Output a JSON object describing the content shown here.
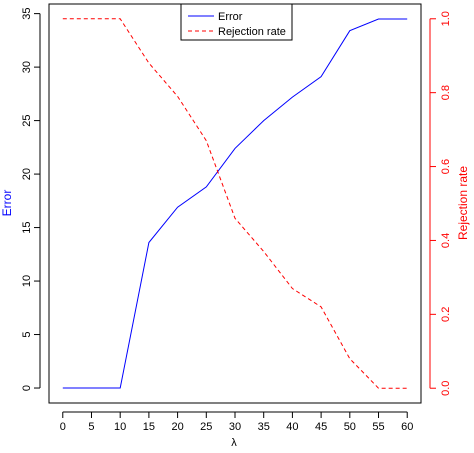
{
  "chart_data": {
    "type": "line",
    "xlabel": "λ",
    "x": [
      0,
      5,
      10,
      15,
      20,
      25,
      30,
      35,
      40,
      45,
      50,
      55,
      60
    ],
    "x_ticks": [
      "0",
      "5",
      "10",
      "15",
      "20",
      "25",
      "30",
      "35",
      "40",
      "45",
      "50",
      "55",
      "60"
    ],
    "xlim": [
      -2.4,
      62.4
    ],
    "left_axis": {
      "label": "Error",
      "color": "#0000ff",
      "ticks": [
        "0",
        "5",
        "10",
        "15",
        "20",
        "25",
        "30",
        "35"
      ],
      "ylim": [
        -1.4,
        35.9
      ]
    },
    "right_axis": {
      "label": "Rejection rate",
      "color": "#ff0000",
      "ticks": [
        "0.0",
        "0.2",
        "0.4",
        "0.6",
        "0.8",
        "1.0"
      ],
      "ylim": [
        -0.04,
        1.04
      ]
    },
    "series": [
      {
        "name": "Error",
        "axis": "left",
        "color": "#0000ff",
        "line_style": "solid",
        "values": [
          0,
          0,
          0,
          13.6,
          16.9,
          18.8,
          22.4,
          25.0,
          27.2,
          29.1,
          33.4,
          34.5,
          34.5
        ]
      },
      {
        "name": "Rejection rate",
        "axis": "right",
        "color": "#ff0000",
        "line_style": "dashed",
        "values": [
          1.0,
          1.0,
          1.0,
          0.88,
          0.79,
          0.67,
          0.46,
          0.37,
          0.27,
          0.22,
          0.08,
          0.0,
          0.0
        ]
      }
    ],
    "legend": {
      "position": "top-center"
    },
    "grid": false
  }
}
